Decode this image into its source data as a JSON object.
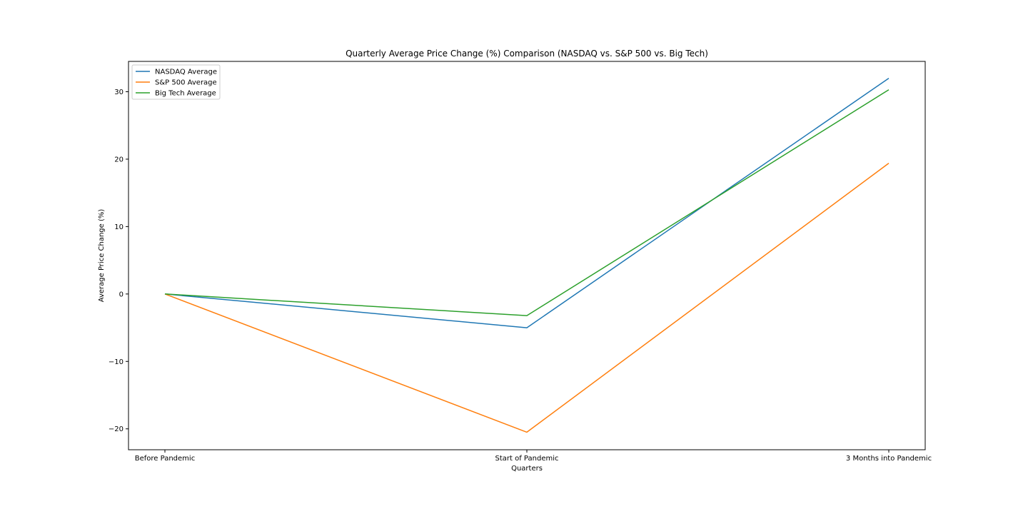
{
  "chart_data": {
    "type": "line",
    "title": "Quarterly Average Price Change (%) Comparison (NASDAQ vs. S&P 500 vs. Big Tech)",
    "xlabel": "Quarters",
    "ylabel": "Average Price Change (%)",
    "categories": [
      "Before Pandemic",
      "Start of Pandemic",
      "3 Months into Pandemic"
    ],
    "yticks": [
      -20,
      -10,
      0,
      10,
      20,
      30
    ],
    "ytick_labels": [
      "−20",
      "−10",
      "0",
      "10",
      "20",
      "30"
    ],
    "ylim": [
      -23.1,
      34.5
    ],
    "grid": false,
    "legend_position": "upper-left",
    "series": [
      {
        "name": "NASDAQ Average",
        "color": "#1f77b4",
        "values": [
          0,
          -5.0,
          32.0
        ]
      },
      {
        "name": "S&P 500 Average",
        "color": "#ff7f0e",
        "values": [
          0,
          -20.5,
          19.4
        ]
      },
      {
        "name": "Big Tech Average",
        "color": "#2ca02c",
        "values": [
          0,
          -3.2,
          30.3
        ]
      }
    ]
  }
}
